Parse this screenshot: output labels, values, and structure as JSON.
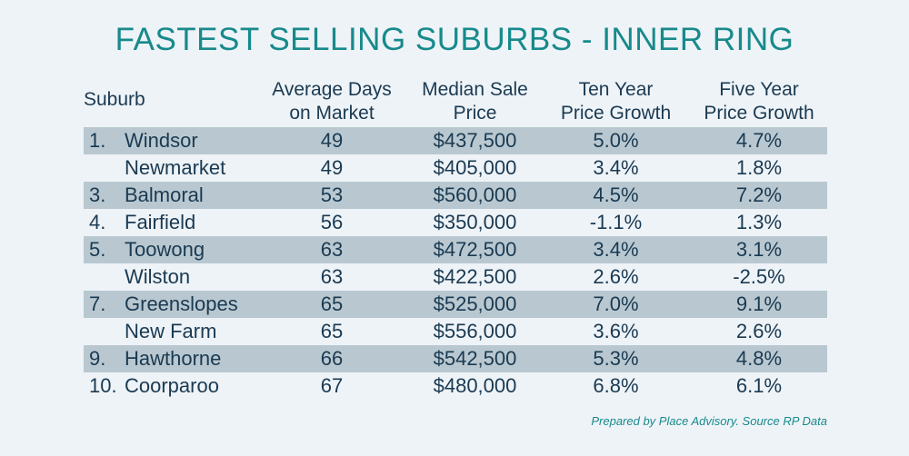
{
  "title": "FASTEST SELLING SUBURBS - INNER RING",
  "headers": {
    "suburb": "Suburb",
    "days_line1": "Average Days",
    "days_line2": "on Market",
    "price_line1": "Median Sale",
    "price_line2": "Price",
    "ten_line1": "Ten Year",
    "ten_line2": "Price Growth",
    "five_line1": "Five Year",
    "five_line2": "Price Growth"
  },
  "rows": [
    {
      "rank": "1.",
      "suburb": "Windsor",
      "days": "49",
      "price": "$437,500",
      "ten_year": "5.0%",
      "five_year": "4.7%"
    },
    {
      "rank": "",
      "suburb": "Newmarket",
      "days": "49",
      "price": "$405,000",
      "ten_year": "3.4%",
      "five_year": "1.8%"
    },
    {
      "rank": "3.",
      "suburb": "Balmoral",
      "days": "53",
      "price": "$560,000",
      "ten_year": "4.5%",
      "five_year": "7.2%"
    },
    {
      "rank": "4.",
      "suburb": "Fairfield",
      "days": "56",
      "price": "$350,000",
      "ten_year": "-1.1%",
      "five_year": "1.3%"
    },
    {
      "rank": "5.",
      "suburb": "Toowong",
      "days": "63",
      "price": "$472,500",
      "ten_year": "3.4%",
      "five_year": "3.1%"
    },
    {
      "rank": "",
      "suburb": "Wilston",
      "days": "63",
      "price": "$422,500",
      "ten_year": "2.6%",
      "five_year": "-2.5%"
    },
    {
      "rank": "7.",
      "suburb": "Greenslopes",
      "days": "65",
      "price": "$525,000",
      "ten_year": "7.0%",
      "five_year": "9.1%"
    },
    {
      "rank": "",
      "suburb": "New Farm",
      "days": "65",
      "price": "$556,000",
      "ten_year": "3.6%",
      "five_year": "2.6%"
    },
    {
      "rank": "9.",
      "suburb": "Hawthorne",
      "days": "66",
      "price": "$542,500",
      "ten_year": "5.3%",
      "five_year": "4.8%"
    },
    {
      "rank": "10.",
      "suburb": "Coorparoo",
      "days": "67",
      "price": "$480,000",
      "ten_year": "6.8%",
      "five_year": "6.1%"
    }
  ],
  "footnote": "Prepared by Place Advisory. Source RP Data"
}
